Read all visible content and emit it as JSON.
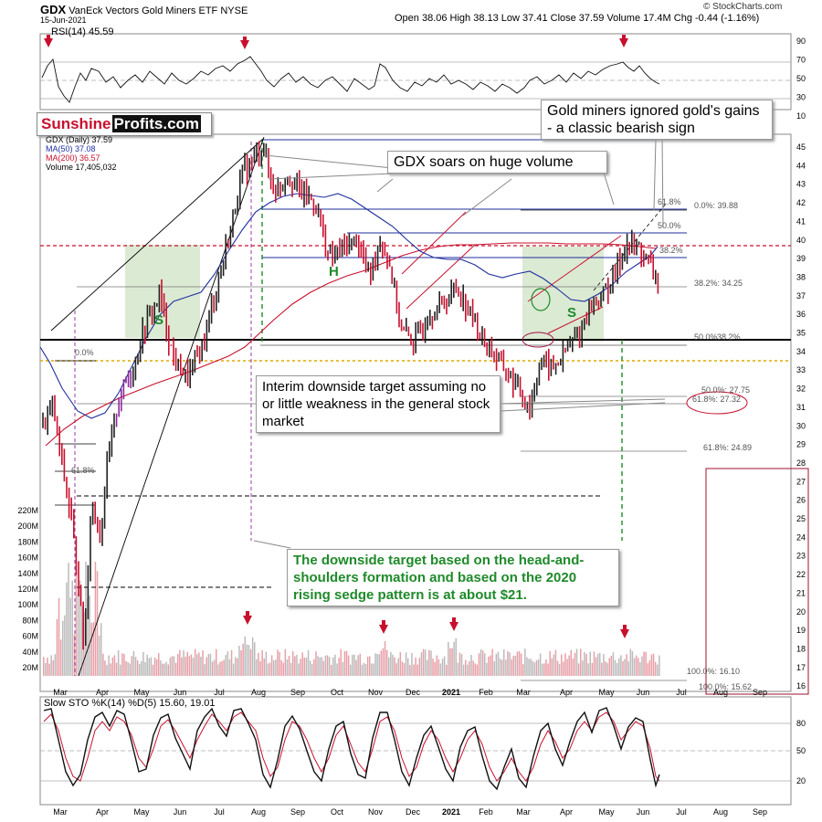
{
  "header": {
    "symbol": "GDX",
    "name": "VanEck Vectors Gold Miners ETF",
    "exchange": "NYSE",
    "date": "15-Jun-2021",
    "ohlc": "Open 38.06  High 38.13  Low 37.41  Close 37.59  Volume 17.4M  Chg -0.44 (-1.16%)",
    "credit": "© StockCharts.com"
  },
  "brand": {
    "part1": "Sunshine",
    "part2": "Profits.com",
    "color1": "#c8102e"
  },
  "rsi": {
    "label": "RSI(14) 45.59",
    "ticks": [
      "90",
      "70",
      "50",
      "30",
      "10"
    ]
  },
  "price": {
    "legend": [
      "GDX (Daily) 37.59",
      "MA(50) 37.08",
      "MA(200) 36.57",
      "Volume 17,405,032"
    ],
    "ticks": [
      "45",
      "44",
      "43",
      "42",
      "41",
      "40",
      "39",
      "38",
      "37",
      "36",
      "35",
      "34",
      "33",
      "32",
      "31",
      "30",
      "29",
      "28",
      "27",
      "26",
      "25",
      "24",
      "23",
      "22",
      "21",
      "20",
      "19",
      "18",
      "17",
      "16"
    ],
    "vol_ticks": [
      "220M",
      "200M",
      "180M",
      "160M",
      "140M",
      "120M",
      "100M",
      "80M",
      "60M",
      "40M",
      "20M"
    ],
    "fib_labels": [
      "61.8%",
      "0.0%: 39.88",
      "50.0%",
      "38.2%",
      "38.2%: 34.25",
      "0.0%",
      "50.0%: 27.75",
      "61.8%: 27.32",
      "61.8%: 24.89",
      "100.0%: 16.10",
      "100.0%: 15.62",
      "50.0%",
      "38.2%",
      "61.8%"
    ],
    "pattern_labels": [
      "S",
      "H",
      "S"
    ]
  },
  "sto": {
    "label": "Slow STO %K(14) %D(5) 15.60, 19.01",
    "ticks": [
      "80",
      "50",
      "20"
    ]
  },
  "xaxis": {
    "months": [
      "Mar",
      "Apr",
      "May",
      "Jun",
      "Jul",
      "Aug",
      "Sep",
      "Oct",
      "Nov",
      "Dec",
      "2021",
      "Feb",
      "Mar",
      "Apr",
      "May",
      "Jun",
      "Jul",
      "Aug",
      "Sep"
    ]
  },
  "annotations": {
    "bearish": "Gold miners ignored gold's gains - a classic bearish sign",
    "soars": "GDX soars on huge volume",
    "interim": "Interim downside target assuming no or little weakness in the general stock market",
    "target": "The downside target based on the head-and-shoulders formation and based on the 2020 rising sedge pattern is at about $21."
  },
  "chart_data": {
    "type": "line",
    "title": "GDX VanEck Vectors Gold Miners ETF",
    "x": [
      "Mar",
      "Apr",
      "May",
      "Jun",
      "Jul",
      "Aug",
      "Sep",
      "Oct",
      "Nov",
      "Dec",
      "2021",
      "Feb",
      "Mar",
      "Apr",
      "May",
      "Jun"
    ],
    "series": [
      {
        "name": "GDX (Daily) 37.59",
        "values": [
          30.0,
          24.0,
          33.0,
          34.0,
          40.0,
          44.5,
          42.0,
          38.5,
          36.5,
          35.0,
          37.5,
          34.5,
          31.5,
          34.0,
          37.0,
          39.5
        ]
      },
      {
        "name": "MA(50) 37.08",
        "values": [
          27.0,
          28.0,
          29.5,
          33.0,
          36.0,
          40.5,
          41.0,
          40.0,
          38.0,
          36.5,
          36.5,
          35.5,
          34.0,
          34.0,
          35.5,
          38.0
        ]
      },
      {
        "name": "MA(200) 36.57",
        "values": [
          26.0,
          27.0,
          27.5,
          28.5,
          30.0,
          32.5,
          34.5,
          36.0,
          36.5,
          37.0,
          37.0,
          37.0,
          36.8,
          36.6,
          36.5,
          36.6
        ]
      }
    ],
    "ylim": [
      16,
      45
    ],
    "close": 37.59,
    "levels": [
      39.88,
      37.2,
      31.0,
      29.8,
      27.75,
      27.32,
      24.89,
      16.1,
      15.62
    ]
  },
  "colors": {
    "up": "#222222",
    "down": "#c8102e",
    "ma50": "#1f2f9e",
    "ma200": "#c8102e",
    "vol": "#e8a0a8",
    "green": "#1f8a2a",
    "target": "#a01030"
  }
}
